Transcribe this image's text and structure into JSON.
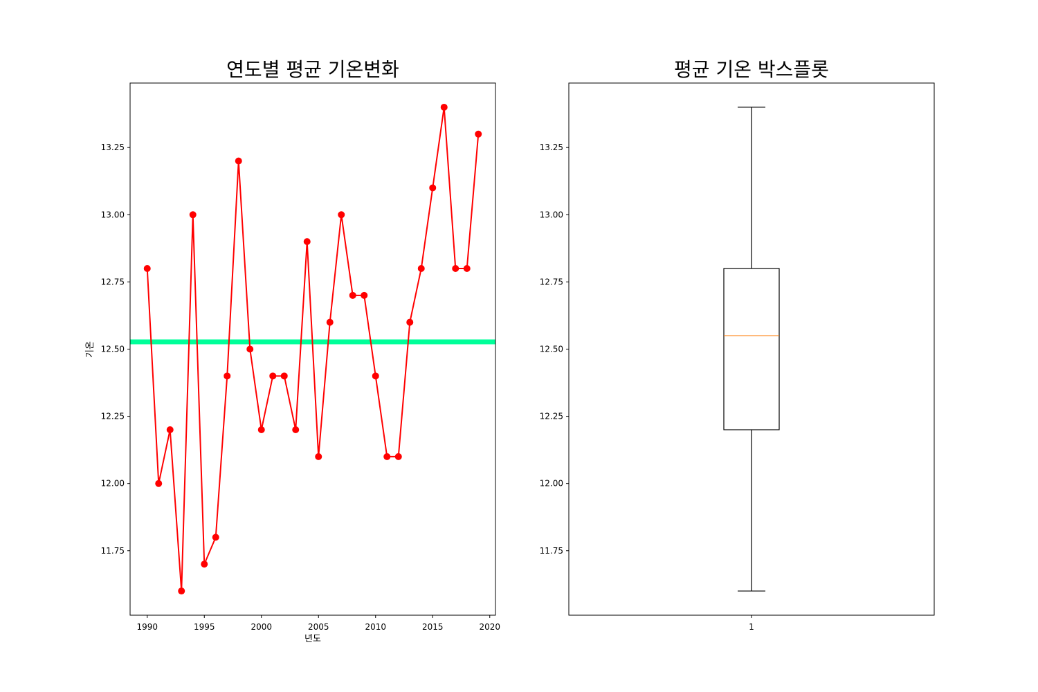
{
  "chart_data": [
    {
      "type": "line",
      "title": "연도별 평균 기온변화",
      "xlabel": "년도",
      "ylabel": "기온",
      "xlim": [
        1988.5,
        2020.5
      ],
      "ylim": [
        11.51,
        13.49
      ],
      "x_ticks": [
        "1990",
        "1995",
        "2000",
        "2005",
        "2010",
        "2015",
        "2020"
      ],
      "y_ticks": [
        "11.75",
        "12.00",
        "12.25",
        "12.50",
        "12.75",
        "13.00",
        "13.25"
      ],
      "grid": false,
      "series": [
        {
          "color": "#ff0000",
          "marker": "circle",
          "x": [
            1990,
            1991,
            1992,
            1993,
            1994,
            1995,
            1996,
            1997,
            1998,
            1999,
            2000,
            2001,
            2002,
            2003,
            2004,
            2005,
            2006,
            2007,
            2008,
            2009,
            2010,
            2011,
            2012,
            2013,
            2014,
            2015,
            2016,
            2017,
            2018,
            2019
          ],
          "values": [
            12.8,
            12.0,
            12.2,
            11.6,
            13.0,
            11.7,
            11.8,
            12.4,
            13.2,
            12.5,
            12.2,
            12.4,
            12.4,
            12.2,
            12.9,
            12.1,
            12.6,
            13.0,
            12.7,
            12.7,
            12.4,
            12.1,
            12.1,
            12.6,
            12.8,
            13.1,
            13.4,
            12.8,
            12.8,
            13.3
          ]
        }
      ],
      "hline": {
        "value": 12.527,
        "color": "#00ff99"
      }
    },
    {
      "type": "box",
      "title": "평균 기온 박스플롯",
      "categories": [
        "1"
      ],
      "ylim": [
        11.51,
        13.49
      ],
      "y_ticks": [
        "11.75",
        "12.00",
        "12.25",
        "12.50",
        "12.75",
        "13.00",
        "13.25"
      ],
      "grid": false,
      "box": {
        "min": 11.6,
        "q1": 12.2,
        "median": 12.55,
        "q3": 12.8,
        "max": 13.4
      },
      "box_color": "#000000",
      "median_color": "#ff7f0e"
    }
  ]
}
